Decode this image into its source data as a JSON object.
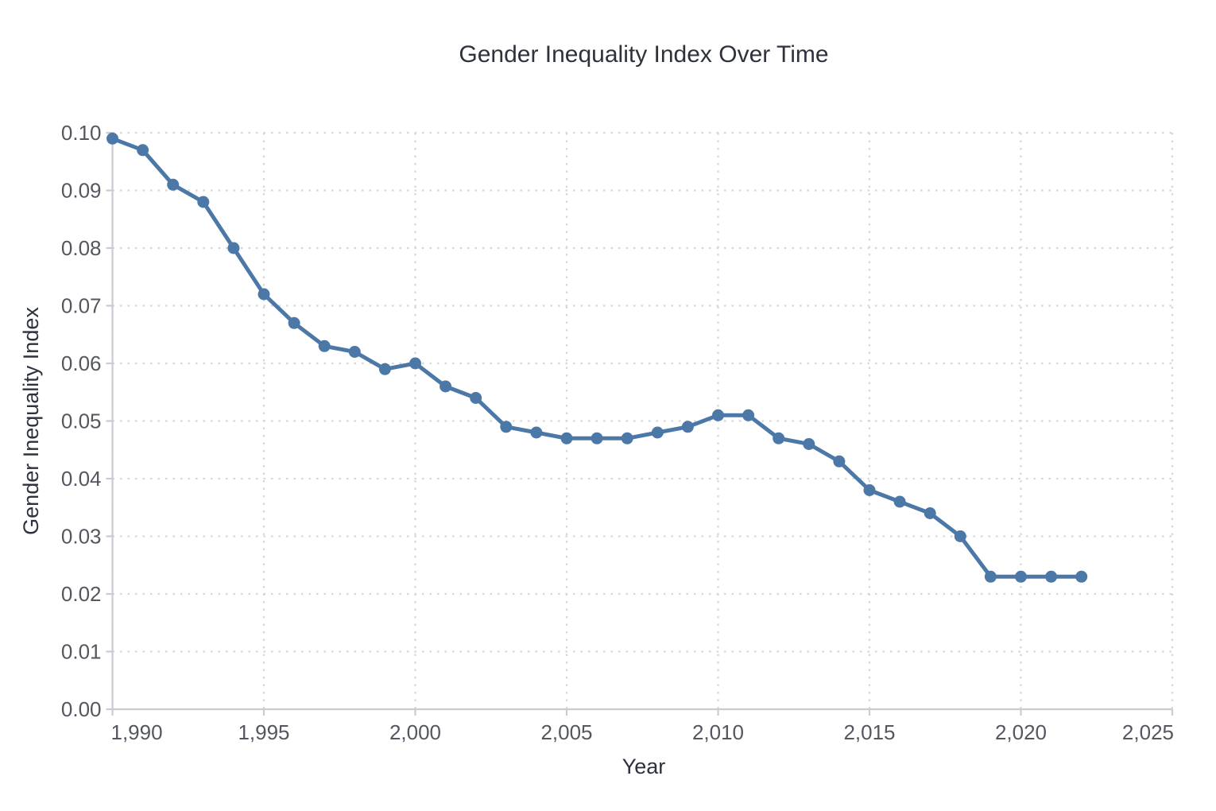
{
  "chart_data": {
    "type": "line",
    "title": "Gender Inequality Index Over Time",
    "xlabel": "Year",
    "ylabel": "Gender Inequality Index",
    "x": [
      1990,
      1991,
      1992,
      1993,
      1994,
      1995,
      1996,
      1997,
      1998,
      1999,
      2000,
      2001,
      2002,
      2003,
      2004,
      2005,
      2006,
      2007,
      2008,
      2009,
      2010,
      2011,
      2012,
      2013,
      2014,
      2015,
      2016,
      2017,
      2018,
      2019,
      2020,
      2021,
      2022
    ],
    "values": [
      0.099,
      0.097,
      0.091,
      0.088,
      0.08,
      0.072,
      0.067,
      0.063,
      0.062,
      0.059,
      0.06,
      0.056,
      0.054,
      0.049,
      0.048,
      0.047,
      0.047,
      0.047,
      0.048,
      0.049,
      0.051,
      0.051,
      0.047,
      0.046,
      0.043,
      0.038,
      0.036,
      0.034,
      0.03,
      0.023,
      0.023,
      0.023,
      0.023
    ],
    "xlim": [
      1990,
      2025
    ],
    "ylim": [
      0,
      0.1
    ],
    "x_ticks": [
      1990,
      1995,
      2000,
      2005,
      2010,
      2015,
      2020,
      2025
    ],
    "x_tick_labels": [
      "1,990",
      "1,995",
      "2,000",
      "2,005",
      "2,010",
      "2,015",
      "2,020",
      "2,025"
    ],
    "y_ticks": [
      0,
      0.01,
      0.02,
      0.03,
      0.04,
      0.05,
      0.06,
      0.07,
      0.08,
      0.09,
      0.1
    ],
    "y_tick_labels": [
      "0.00",
      "0.01",
      "0.02",
      "0.03",
      "0.04",
      "0.05",
      "0.06",
      "0.07",
      "0.08",
      "0.09",
      "0.10"
    ],
    "grid": "dotted, both axes",
    "legend_position": "none",
    "colors": {
      "line": "#4c78a8",
      "marker": "#4c78a8",
      "grid": "#d5d7da",
      "axis": "#c9ccd1",
      "title_text": "#2e323c",
      "tick_text": "#54575f"
    }
  }
}
